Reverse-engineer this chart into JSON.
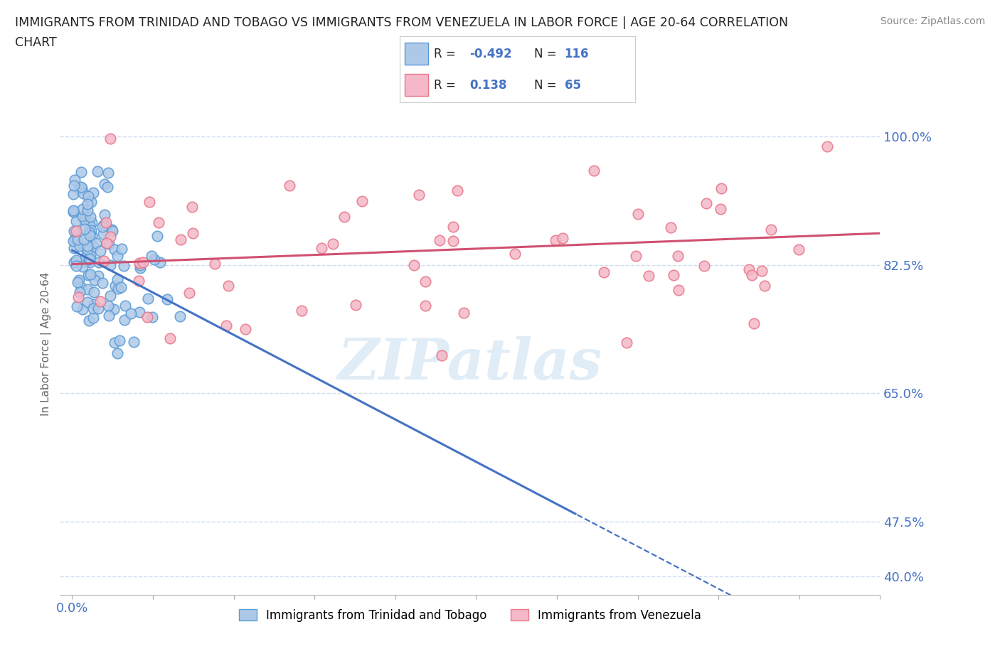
{
  "title_line1": "IMMIGRANTS FROM TRINIDAD AND TOBAGO VS IMMIGRANTS FROM VENEZUELA IN LABOR FORCE | AGE 20-64 CORRELATION",
  "title_line2": "CHART",
  "source_text": "Source: ZipAtlas.com",
  "ylabel": "In Labor Force | Age 20-64",
  "y_ticks": [
    0.4,
    0.475,
    0.65,
    0.825,
    1.0
  ],
  "y_tick_labels": [
    "40.0%",
    "47.5%",
    "65.0%",
    "82.5%",
    "100.0%"
  ],
  "xlim": [
    -0.015,
    1.0
  ],
  "ylim": [
    0.375,
    1.06
  ],
  "tt_color_edge": "#5b9bd5",
  "tt_color_face": "#aec9e8",
  "ven_color_face": "#f4b8c8",
  "ven_color_edge": "#e8788a",
  "tt_R": -0.492,
  "tt_N": 116,
  "ven_R": 0.138,
  "ven_N": 65,
  "tt_line_color": "#4472c4",
  "ven_line_color": "#d05070",
  "legend_label_tt": "Immigrants from Trinidad and Tobago",
  "legend_label_ven": "Immigrants from Venezuela",
  "watermark_text": "ZIPatlas",
  "background_color": "#ffffff",
  "grid_color": "#c8d8ee",
  "title_fontsize": 12.5,
  "axis_label_color": "#4472c4",
  "ylabel_color": "#666666"
}
